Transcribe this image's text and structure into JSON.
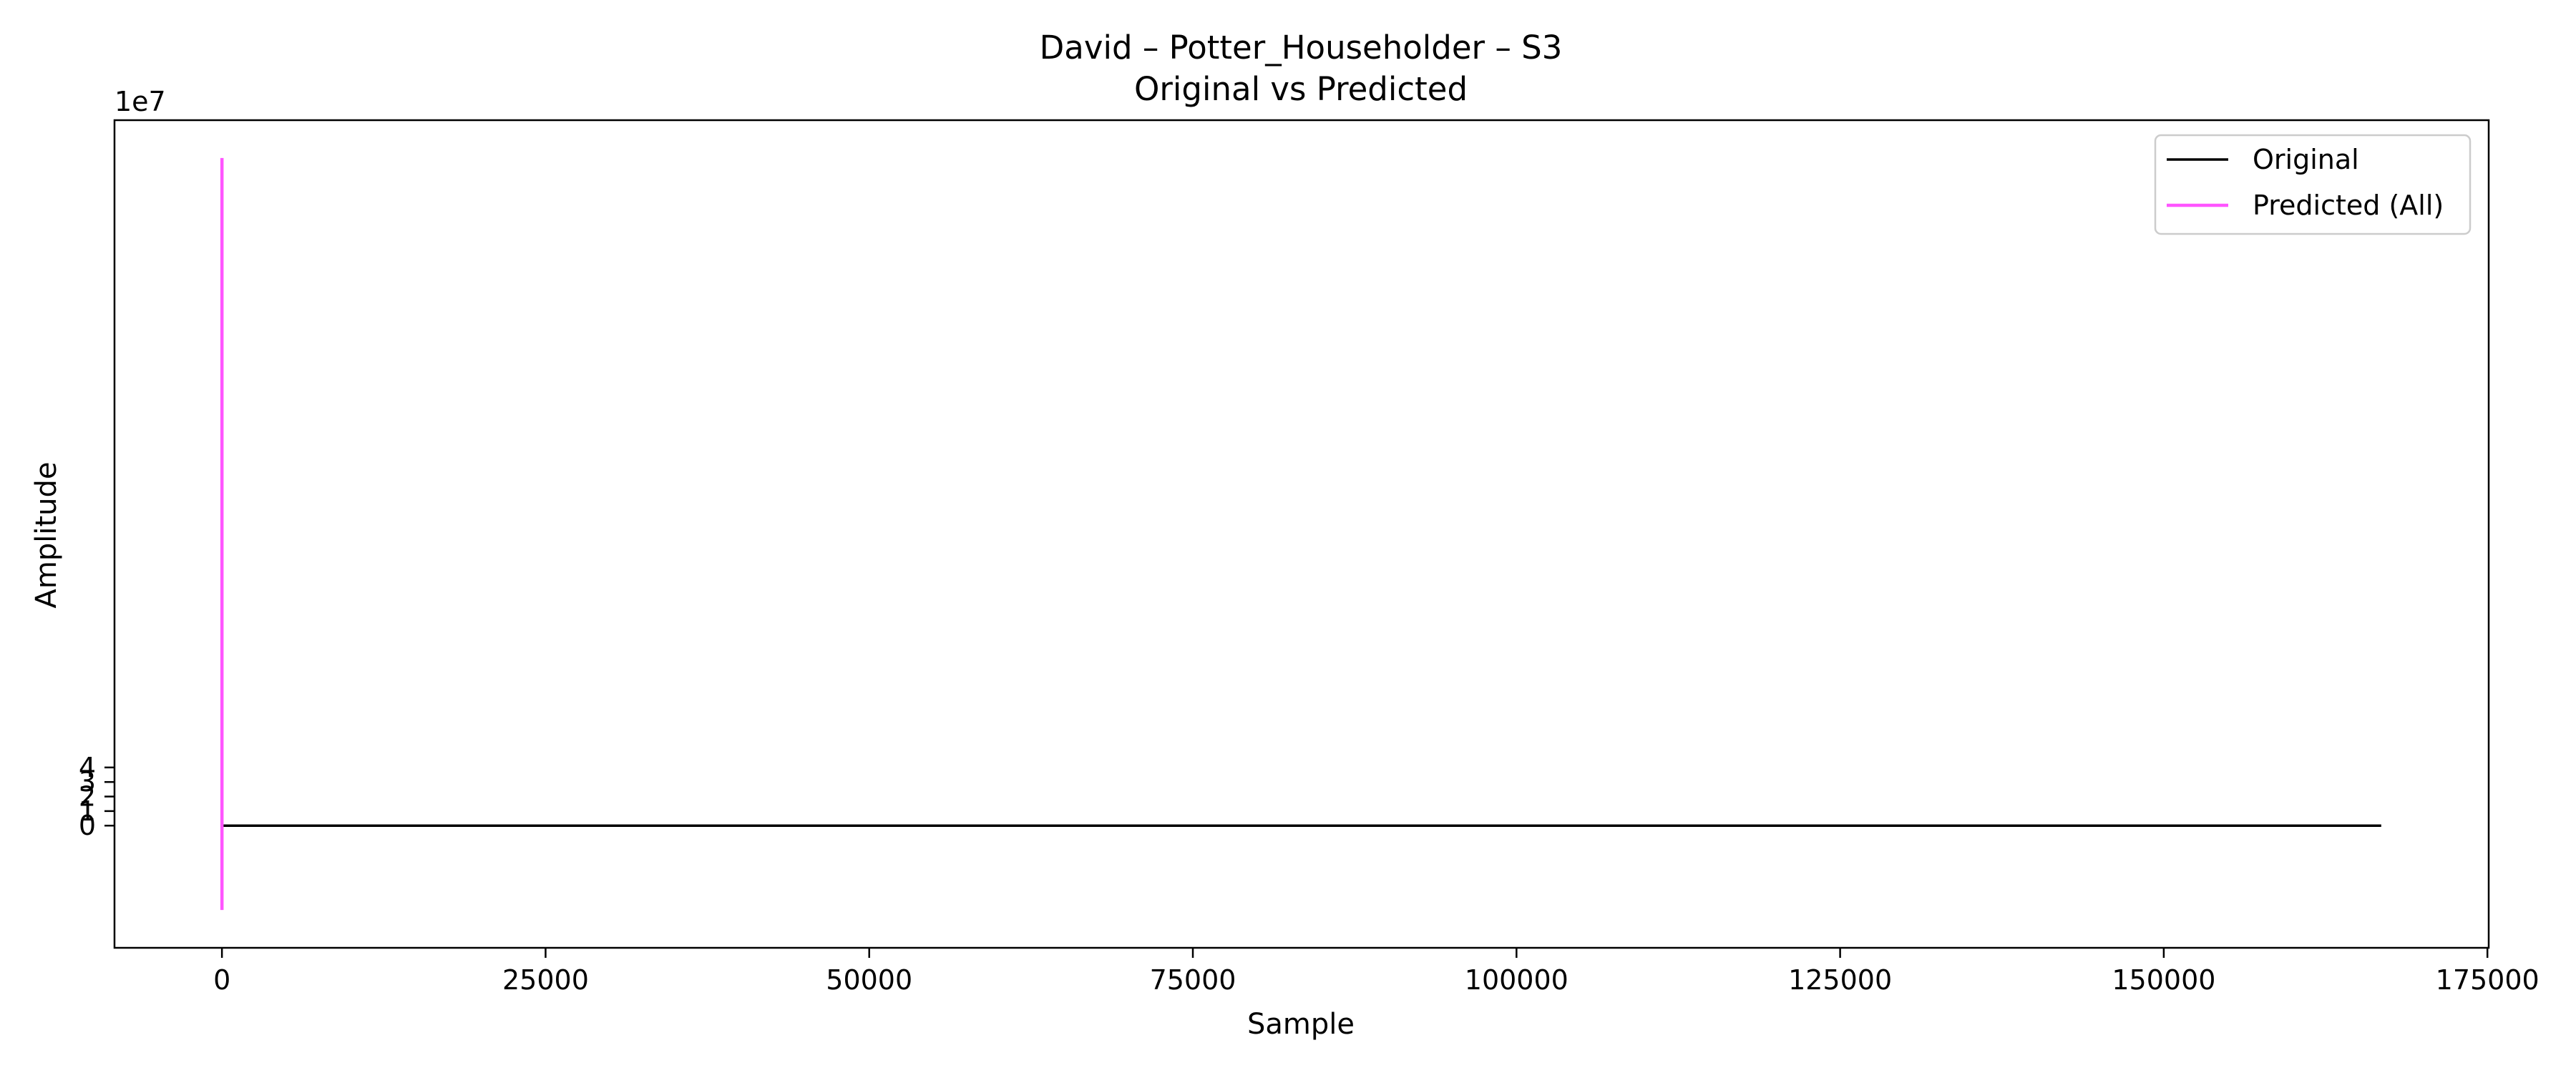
{
  "chart_data": {
    "type": "line",
    "title": "David – Potter_Householder – S3",
    "subtitle": "Original vs Predicted",
    "xlabel": "Sample",
    "ylabel": "Amplitude",
    "y_offset_label": "1e7",
    "xlim": [
      -8300,
      175100
    ],
    "ylim": [
      -8.4,
      48.5
    ],
    "y_scale_note": "tick values × 1e7",
    "x_ticks": [
      0,
      25000,
      50000,
      75000,
      100000,
      125000,
      150000,
      175000
    ],
    "x_tick_labels": [
      "0",
      "25000",
      "50000",
      "75000",
      "100000",
      "125000",
      "150000",
      "175000"
    ],
    "y_ticks": [
      0,
      1,
      2,
      3,
      4
    ],
    "y_tick_labels": [
      "0",
      "1",
      "2",
      "3",
      "4"
    ],
    "grid": false,
    "legend_position": "top-right",
    "series": [
      {
        "name": "Original",
        "color": "#000000",
        "x": [
          0,
          166800
        ],
        "y": [
          0,
          0
        ]
      },
      {
        "name": "Predicted (All)",
        "color": "#ff55ff",
        "x": [
          0,
          0
        ],
        "y": [
          -5.8,
          45.9
        ]
      }
    ]
  }
}
